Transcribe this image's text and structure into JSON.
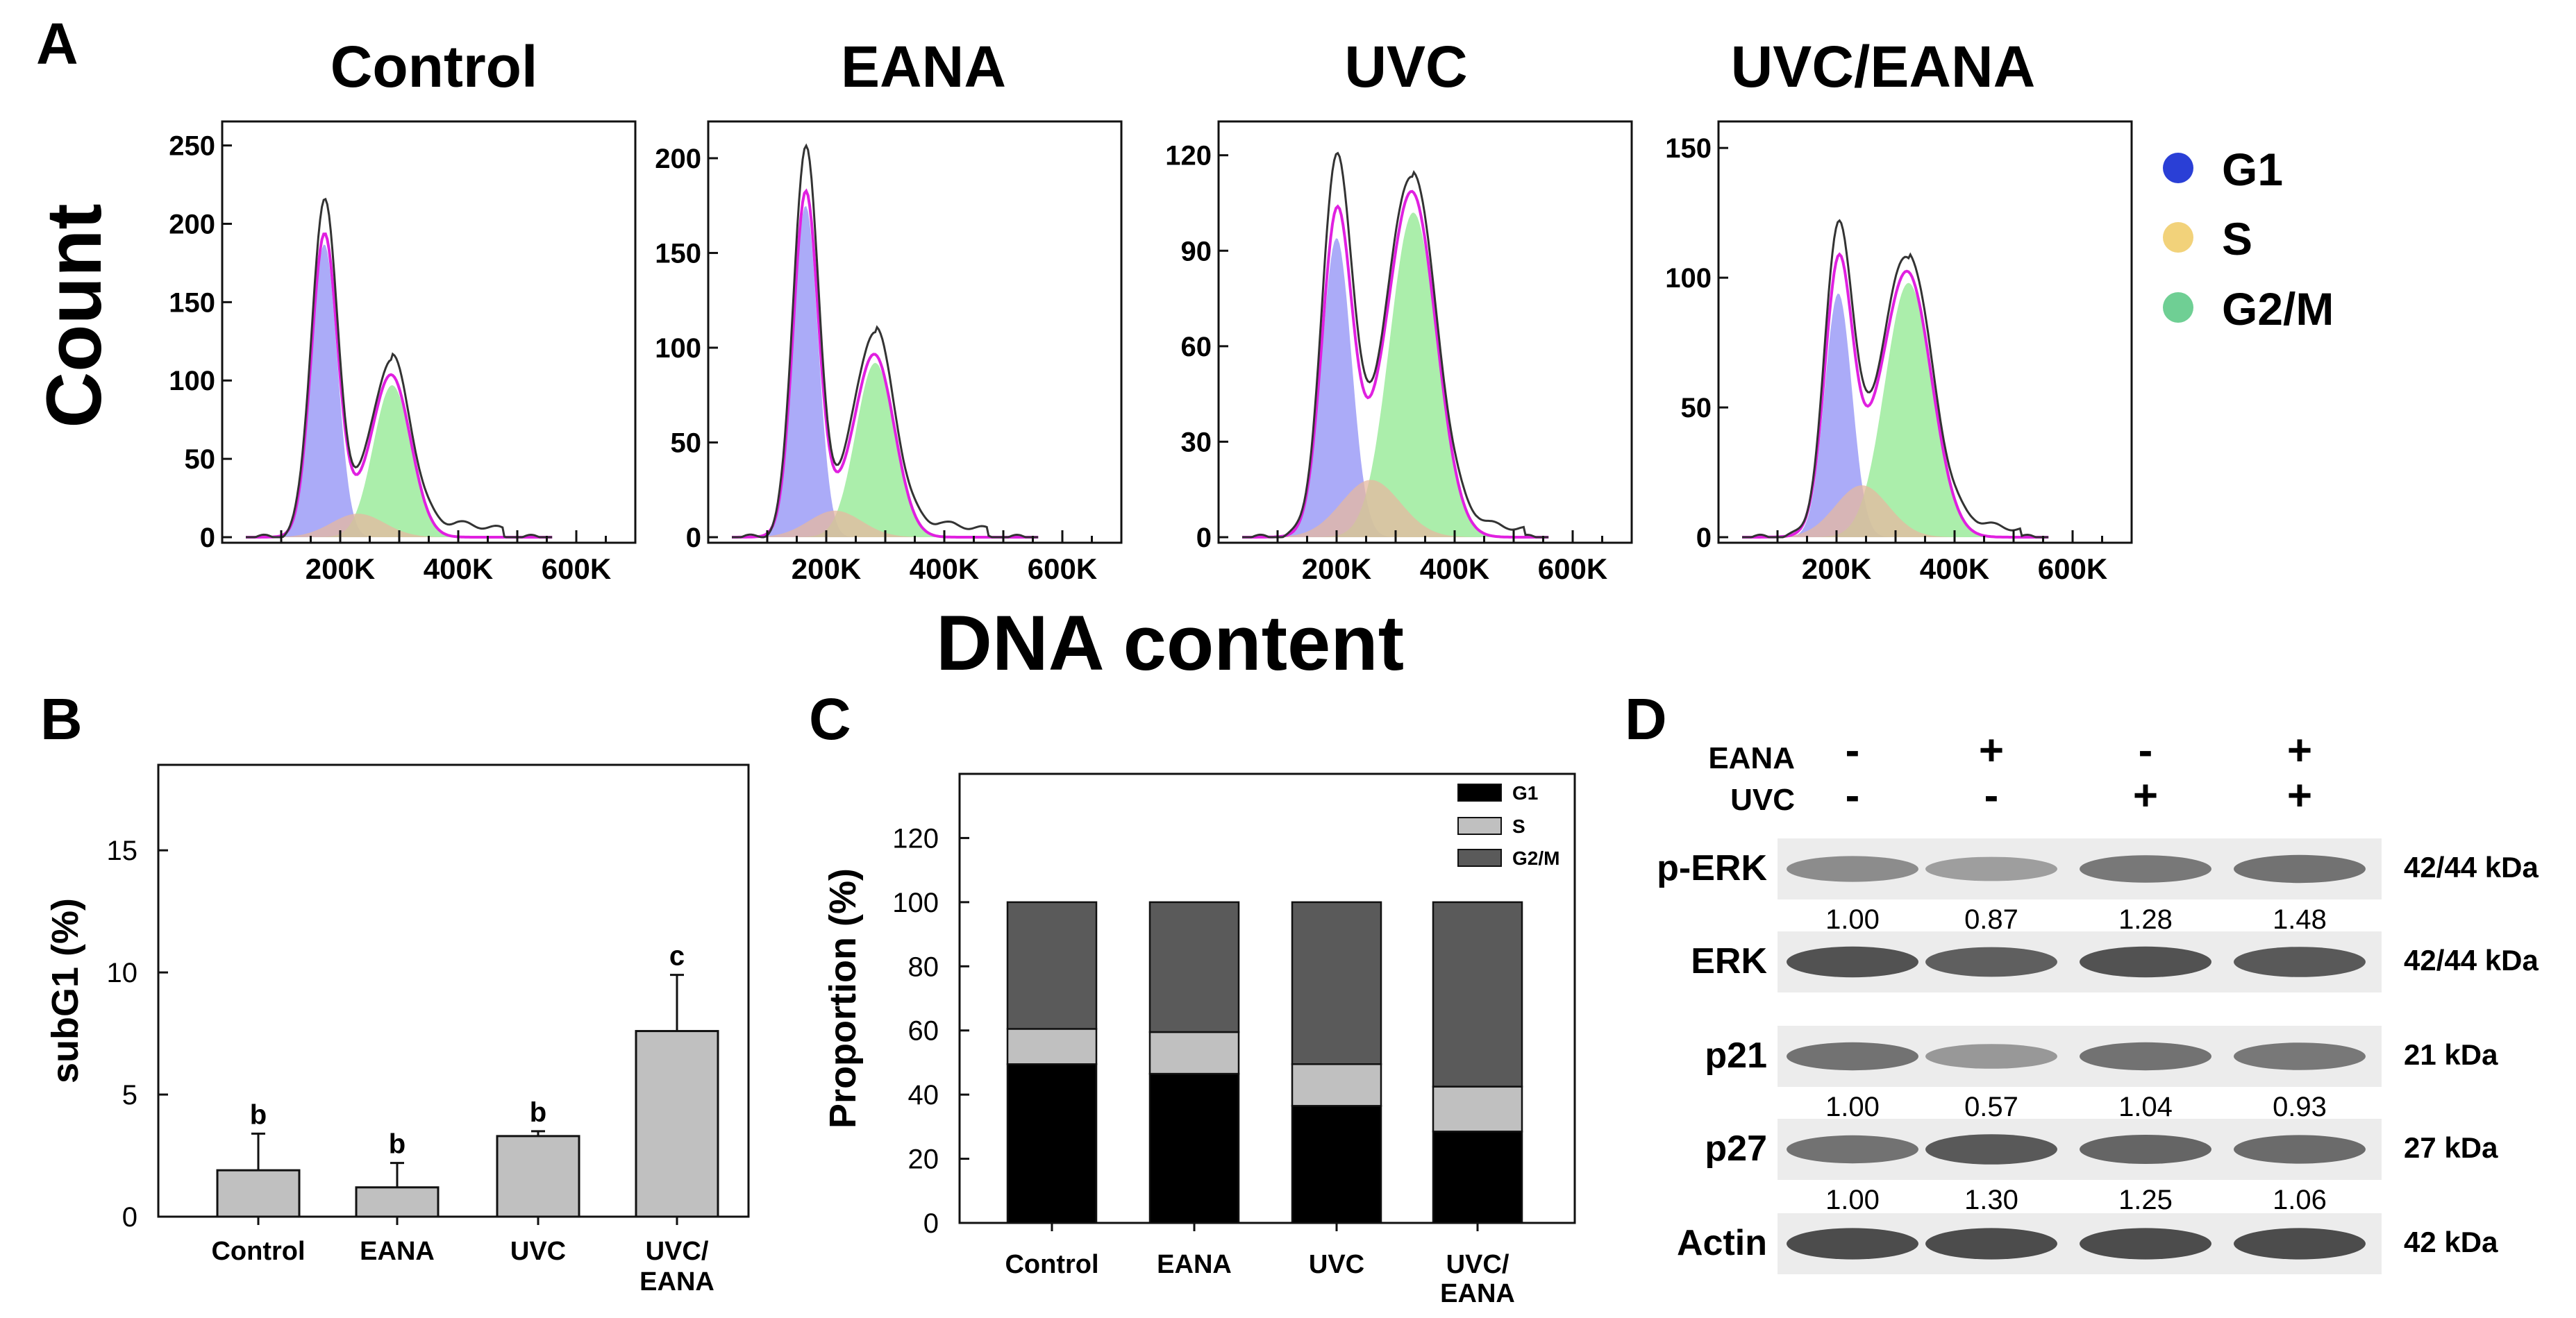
{
  "panel_letters": {
    "a": "A",
    "b": "B",
    "c": "C",
    "d": "D"
  },
  "panel_a": {
    "ylabel": "Count",
    "xlabel": "DNA content",
    "x_ticks": [
      "200K",
      "400K",
      "600K"
    ],
    "legend": [
      {
        "label": "G1",
        "color": "#2a3fd6"
      },
      {
        "label": "S",
        "color": "#f2d27a"
      },
      {
        "label": "G2/M",
        "color": "#6fcf94"
      }
    ],
    "colors": {
      "g1_fill": "#8f8ff5",
      "s_fill": "#e6b8a0",
      "g2m_fill": "#8fe88f",
      "fit": "#e020e0",
      "data": "#333333"
    }
  },
  "panel_d": {
    "row_labels": {
      "eana": "EANA",
      "uvc": "UVC"
    },
    "eana": [
      "-",
      "+",
      "-",
      "+"
    ],
    "uvc": [
      "-",
      "-",
      "+",
      "+"
    ],
    "blots": [
      {
        "name": "p-ERK",
        "kda": "42/44 kDa",
        "values": [
          "1.00",
          "0.87",
          "1.28",
          "1.48"
        ],
        "intensity": [
          0.45,
          0.3,
          0.6,
          0.65
        ]
      },
      {
        "name": "ERK",
        "kda": "42/44 kDa",
        "values": [],
        "intensity": [
          0.9,
          0.8,
          0.9,
          0.85
        ]
      },
      {
        "name": "p21",
        "kda": "21 kDa",
        "values": [
          "1.00",
          "0.57",
          "1.04",
          "0.93"
        ],
        "intensity": [
          0.65,
          0.35,
          0.65,
          0.6
        ]
      },
      {
        "name": "p27",
        "kda": "27 kDa",
        "values": [
          "1.00",
          "1.30",
          "1.25",
          "1.06"
        ],
        "intensity": [
          0.65,
          0.85,
          0.75,
          0.7
        ]
      },
      {
        "name": "Actin",
        "kda": "42 kDa",
        "values": [],
        "intensity": [
          0.95,
          0.95,
          0.95,
          0.95
        ]
      }
    ]
  },
  "chart_data": [
    {
      "type": "area",
      "title": "Control",
      "xlabel": "DNA content",
      "ylabel": "Count",
      "x_tick_values": [
        200000,
        400000,
        600000
      ],
      "xlim": [
        0,
        700000
      ],
      "yticks": [
        0,
        50,
        100,
        150,
        200,
        250
      ],
      "ylim": [
        0,
        260
      ],
      "g1": {
        "mean": 173000,
        "sd": 22000,
        "amp": 187
      },
      "s": {
        "mean": 230000,
        "sd": 45000,
        "amp": 15
      },
      "g2m": {
        "mean": 288000,
        "sd": 32000,
        "amp": 97
      },
      "data_peaks": [
        215,
        112
      ]
    },
    {
      "type": "area",
      "title": "EANA",
      "xlabel": "DNA content",
      "ylabel": "Count",
      "x_tick_values": [
        200000,
        400000,
        600000
      ],
      "xlim": [
        0,
        700000
      ],
      "yticks": [
        0,
        50,
        100,
        150,
        200
      ],
      "ylim": [
        0,
        215
      ],
      "g1": {
        "mean": 165000,
        "sd": 21000,
        "amp": 175
      },
      "s": {
        "mean": 215000,
        "sd": 45000,
        "amp": 14
      },
      "g2m": {
        "mean": 283000,
        "sd": 33000,
        "amp": 92
      },
      "data_peaks": [
        207,
        108
      ]
    },
    {
      "type": "area",
      "title": "UVC",
      "xlabel": "DNA content",
      "ylabel": "Count",
      "x_tick_values": [
        200000,
        400000,
        600000
      ],
      "xlim": [
        0,
        700000
      ],
      "yticks": [
        0,
        30,
        60,
        90,
        120
      ],
      "ylim": [
        0,
        128
      ],
      "g1": {
        "mean": 200000,
        "sd": 25000,
        "amp": 94
      },
      "s": {
        "mean": 258000,
        "sd": 50000,
        "amp": 18
      },
      "g2m": {
        "mean": 330000,
        "sd": 40000,
        "amp": 102
      },
      "data_peaks": [
        121,
        113
      ]
    },
    {
      "type": "area",
      "title": "UVC/EANA",
      "xlabel": "DNA content",
      "ylabel": "Count",
      "x_tick_values": [
        200000,
        400000,
        600000
      ],
      "xlim": [
        0,
        700000
      ],
      "yticks": [
        0,
        50,
        100,
        150
      ],
      "ylim": [
        0,
        157
      ],
      "g1": {
        "mean": 203000,
        "sd": 23000,
        "amp": 94
      },
      "s": {
        "mean": 243000,
        "sd": 45000,
        "amp": 20
      },
      "g2m": {
        "mean": 322000,
        "sd": 40000,
        "amp": 98
      },
      "data_peaks": [
        122,
        108
      ]
    },
    {
      "type": "bar",
      "title": "",
      "categories": [
        "Control",
        "EANA",
        "UVC",
        "UVC/ EANA"
      ],
      "values": [
        1.9,
        1.2,
        3.3,
        7.6
      ],
      "errors": [
        1.5,
        1.0,
        0.2,
        2.3
      ],
      "letters": [
        "b",
        "b",
        "b",
        "c"
      ],
      "xlabel": "",
      "ylabel": "subG1 (%)",
      "yticks": [
        0,
        5,
        10,
        15
      ],
      "ylim": [
        0,
        18.5
      ]
    },
    {
      "type": "bar",
      "stacked": true,
      "title": "",
      "categories": [
        "Control",
        "EANA",
        "UVC",
        "UVC/ EANA"
      ],
      "series": [
        {
          "name": "G1",
          "values": [
            49.5,
            46.5,
            36.5,
            28.5
          ],
          "color": "#000000"
        },
        {
          "name": "S",
          "values": [
            11,
            13,
            13,
            14
          ],
          "color": "#c0c0c0"
        },
        {
          "name": "G2/M",
          "values": [
            39.5,
            40.5,
            50.5,
            57.5
          ],
          "color": "#5a5a5a"
        }
      ],
      "xlabel": "",
      "ylabel": "Proportion (%)",
      "yticks": [
        0,
        20,
        40,
        60,
        80,
        100,
        120
      ],
      "ylim": [
        0,
        140
      ]
    }
  ]
}
